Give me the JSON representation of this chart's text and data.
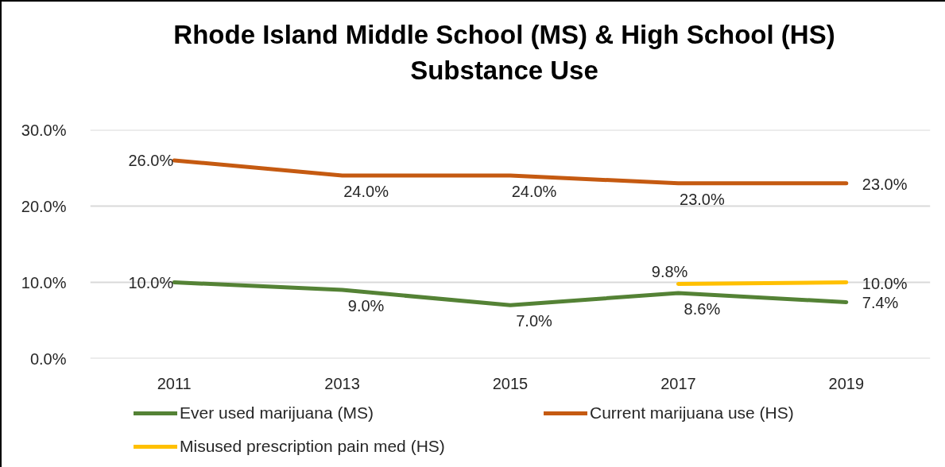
{
  "chart_data": {
    "type": "line",
    "title": "Rhode Island Middle School (MS) & High School (HS) Substance Use",
    "categories": [
      "2011",
      "2013",
      "2015",
      "2017",
      "2019"
    ],
    "ylim": [
      0,
      30
    ],
    "yticks": [
      {
        "value": 0,
        "label": "0.0%"
      },
      {
        "value": 10,
        "label": "10.0%"
      },
      {
        "value": 20,
        "label": "20.0%"
      },
      {
        "value": 30,
        "label": "30.0%"
      }
    ],
    "grid": "y",
    "legend": "bottom",
    "series": [
      {
        "name": "Ever used marijuana (MS)",
        "color": "#548235",
        "values": [
          10,
          9,
          7,
          8.6,
          7.4
        ],
        "value_labels": [
          "10.0%",
          "9.0%",
          "7.0%",
          "8.6%",
          "7.4%"
        ]
      },
      {
        "name": "Current marijuana use (HS)",
        "color": "#c55a11",
        "values": [
          26,
          24,
          24,
          23,
          23
        ],
        "value_labels": [
          "26.0%",
          "24.0%",
          "24.0%",
          "23.0%",
          "23.0%"
        ]
      },
      {
        "name": "Misused prescription pain med (HS)",
        "color": "#ffc000",
        "values": [
          null,
          null,
          null,
          9.8,
          10.0
        ],
        "value_labels": [
          null,
          null,
          null,
          "9.8%",
          "10.0%"
        ]
      }
    ]
  }
}
